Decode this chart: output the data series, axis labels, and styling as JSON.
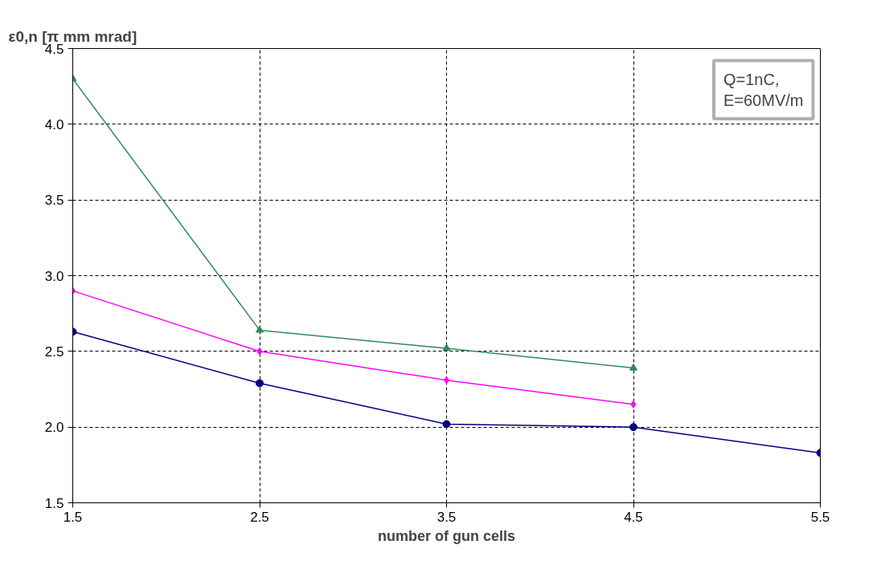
{
  "chart_data": {
    "type": "line",
    "xlabel": "number of gun cells",
    "ylabel": "ε0,n [π mm mrad]",
    "annotations": [
      "Q=1nC,\nE=60MV/m"
    ],
    "xlim": [
      1.5,
      5.5
    ],
    "xticks": [
      1.5,
      2.5,
      3.5,
      4.5,
      5.5
    ],
    "ylim": [
      1.5,
      4.5
    ],
    "yticks": [
      1.5,
      {
        "value": 2,
        "label": "2.0"
      },
      2.5,
      {
        "value": 3,
        "label": "3.0"
      },
      3.5,
      {
        "value": 4,
        "label": "4.0"
      },
      4.5
    ],
    "grid": true,
    "series": [
      {
        "color": "#2e8b57",
        "marker": "triangle",
        "x": [
          1.5,
          2.5,
          3.5,
          4.5
        ],
        "values": [
          4.3,
          2.64,
          2.52,
          2.39
        ]
      },
      {
        "color": "#ff00ff",
        "marker": "diamond",
        "x": [
          1.5,
          2.5,
          3.5,
          4.5
        ],
        "values": [
          2.9,
          2.5,
          2.31,
          2.15
        ]
      },
      {
        "color": "#000080",
        "marker": "circle",
        "x": [
          1.5,
          2.5,
          3.5,
          4.5,
          5.5
        ],
        "values": [
          2.63,
          2.29,
          2.02,
          2.0,
          1.83
        ]
      }
    ]
  }
}
